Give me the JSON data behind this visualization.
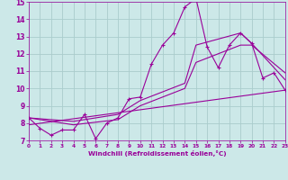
{
  "xlabel": "Windchill (Refroidissement éolien,°C)",
  "xlim": [
    0,
    23
  ],
  "ylim": [
    7,
    15
  ],
  "yticks": [
    7,
    8,
    9,
    10,
    11,
    12,
    13,
    14,
    15
  ],
  "xticks": [
    0,
    1,
    2,
    3,
    4,
    5,
    6,
    7,
    8,
    9,
    10,
    11,
    12,
    13,
    14,
    15,
    16,
    17,
    18,
    19,
    20,
    21,
    22,
    23
  ],
  "bg_color": "#cce8e8",
  "grid_color": "#aacccc",
  "line_color": "#990099",
  "line1_x": [
    0,
    1,
    2,
    3,
    4,
    5,
    6,
    7,
    8,
    9,
    10,
    11,
    12,
    13,
    14,
    15,
    16,
    17,
    18,
    19,
    20,
    21,
    22,
    23
  ],
  "line1_y": [
    8.3,
    7.7,
    7.3,
    7.6,
    7.6,
    8.5,
    7.1,
    8.0,
    8.3,
    9.4,
    9.5,
    11.4,
    12.5,
    13.2,
    14.7,
    15.2,
    12.4,
    11.2,
    12.5,
    13.2,
    12.6,
    10.6,
    10.9,
    9.9
  ],
  "line2_x": [
    0,
    4,
    8,
    10,
    14,
    15,
    19,
    20,
    23
  ],
  "line2_y": [
    8.3,
    8.1,
    8.5,
    9.3,
    10.3,
    12.5,
    13.2,
    12.6,
    10.5
  ],
  "line3_x": [
    0,
    4,
    8,
    10,
    14,
    15,
    19,
    20,
    23
  ],
  "line3_y": [
    8.3,
    7.9,
    8.2,
    9.0,
    10.0,
    11.5,
    12.5,
    12.5,
    10.9
  ],
  "line4_x": [
    0,
    23
  ],
  "line4_y": [
    7.9,
    9.9
  ]
}
